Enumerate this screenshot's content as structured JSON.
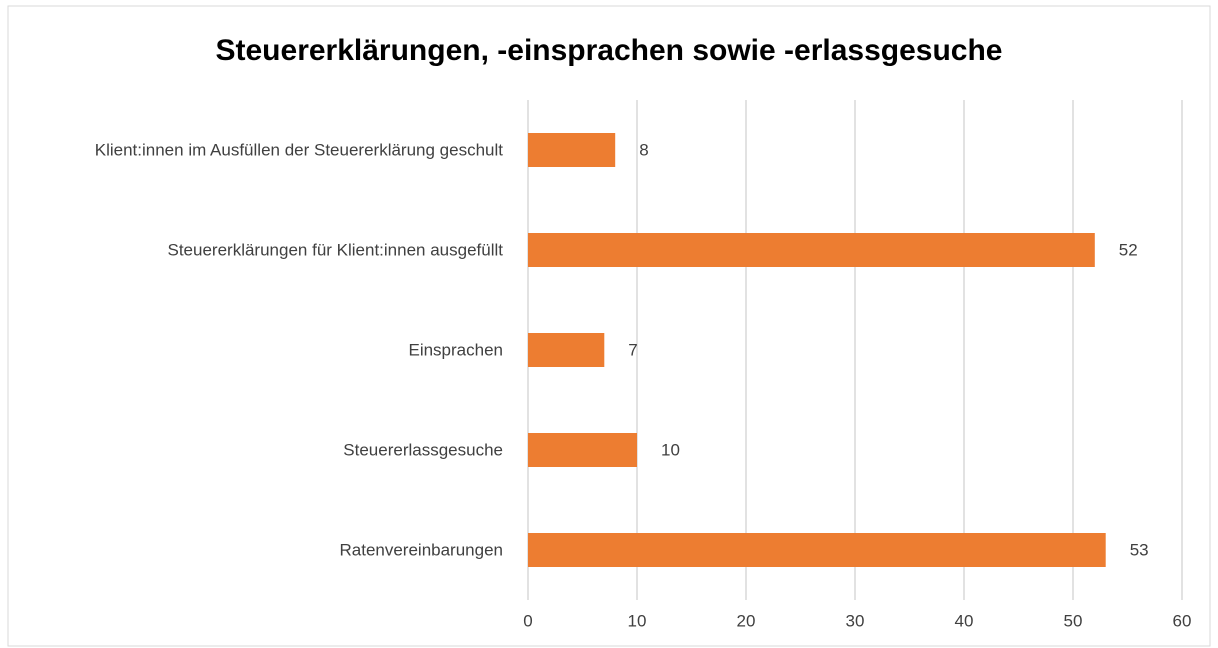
{
  "chart_data": {
    "type": "bar",
    "orientation": "horizontal",
    "title": "Steuererklärungen, -einsprachen sowie -erlassgesuche",
    "categories": [
      "Klient:innen im Ausfüllen der Steuererklärung geschult",
      "Steuererklärungen für Klient:innen ausgefüllt",
      "Einsprachen",
      "Steuererlassgesuche",
      "Ratenvereinbarungen"
    ],
    "values": [
      8,
      52,
      7,
      10,
      53
    ],
    "color": "#ed7d31",
    "xlim": [
      0,
      60
    ],
    "xticks": [
      0,
      10,
      20,
      30,
      40,
      50,
      60
    ],
    "grid": true
  }
}
